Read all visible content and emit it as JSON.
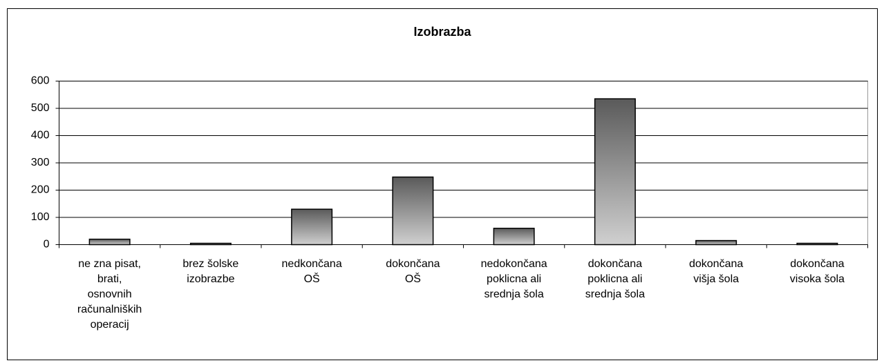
{
  "chart_data": {
    "type": "bar",
    "title": "Izobrazba",
    "categories": [
      "ne zna pisat,\nbrati,\nosnovnih\nračunalniških\noperacij",
      "brez šolske\nizobrazbe",
      "nedkončana\nOŠ",
      "dokončana\nOŠ",
      "nedokončana\npoklicna ali\nsrednja šola",
      "dokončana\npoklicna ali\nsrednja šola",
      "dokončana\nvišja šola",
      "dokončana\nvisoka šola"
    ],
    "values": [
      20,
      5,
      130,
      248,
      60,
      535,
      15,
      5
    ],
    "ylim": [
      0,
      600
    ],
    "yticks": [
      0,
      100,
      200,
      300,
      400,
      500,
      600
    ],
    "grid": true
  }
}
